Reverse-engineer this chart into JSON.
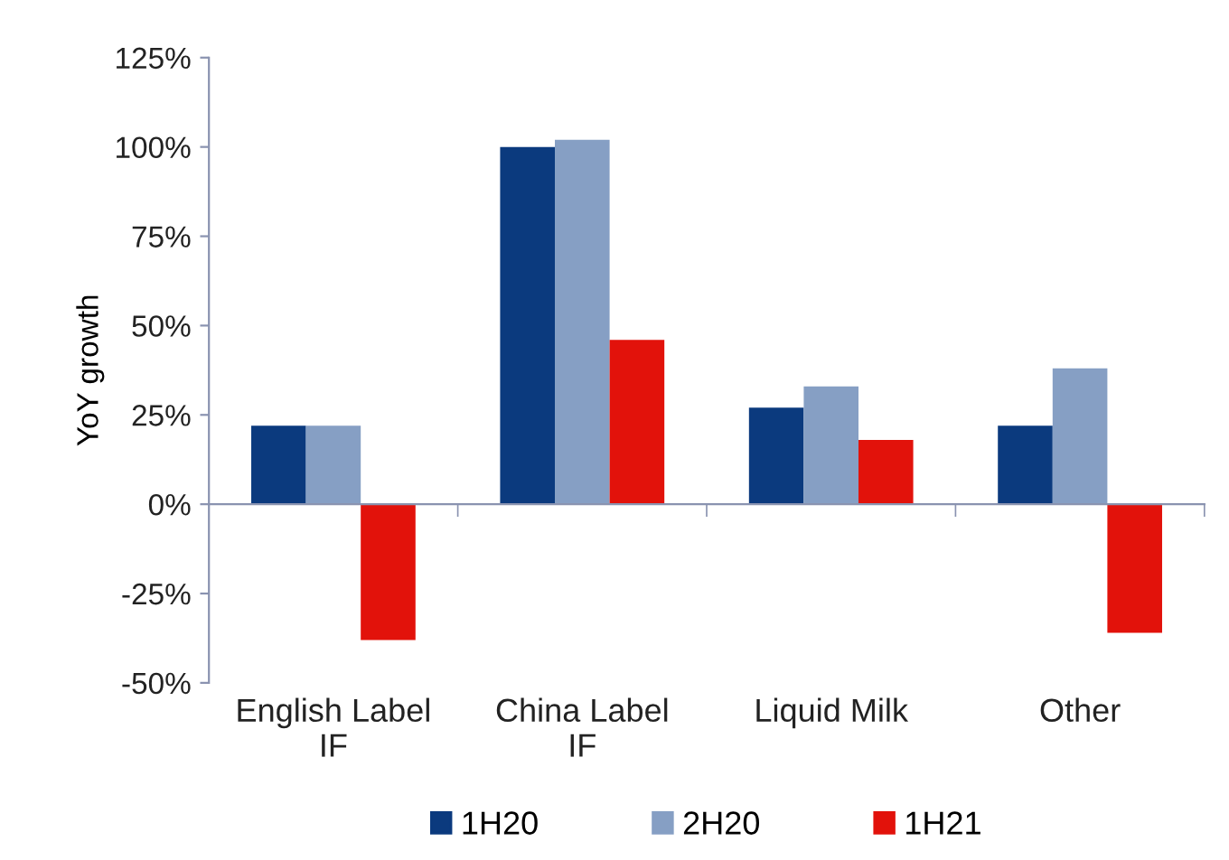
{
  "chart_data": {
    "type": "bar",
    "ylabel": "YoY growth",
    "categories": [
      "English Label\nIF",
      "China Label\nIF",
      "Liquid Milk",
      "Other"
    ],
    "series": [
      {
        "name": "1H20",
        "color": "#0b3a7e",
        "values": [
          22,
          100,
          27,
          22
        ]
      },
      {
        "name": "2H20",
        "color": "#869fc4",
        "values": [
          22,
          102,
          33,
          38
        ]
      },
      {
        "name": "1H21",
        "color": "#e2120b",
        "values": [
          -38,
          46,
          18,
          -36
        ]
      }
    ],
    "ylim": [
      -50,
      125
    ],
    "yticks": [
      {
        "value": -50,
        "label": "-50%"
      },
      {
        "value": -25,
        "label": "-25%"
      },
      {
        "value": 0,
        "label": "0%"
      },
      {
        "value": 25,
        "label": "25%"
      },
      {
        "value": 50,
        "label": "50%"
      },
      {
        "value": 75,
        "label": "75%"
      },
      {
        "value": 100,
        "label": "100%"
      },
      {
        "value": 125,
        "label": "125%"
      }
    ],
    "legend": "bottom"
  }
}
